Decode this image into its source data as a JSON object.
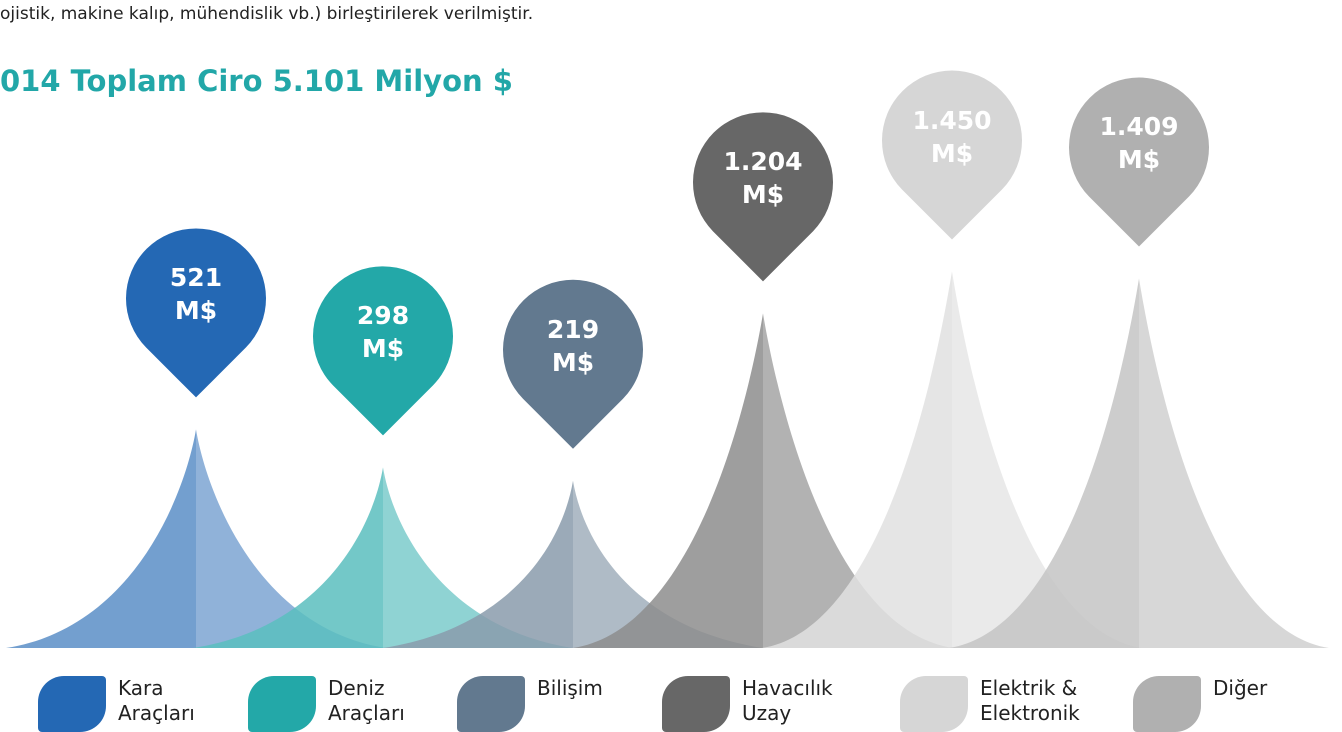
{
  "chart_data": {
    "type": "peak",
    "note": "ojistik, makine kalıp, mühendislik vb.) birleştirilerek verilmiştir.",
    "title": "014 Toplam Ciro  5.101 Milyon $",
    "categories": [
      "Kara Araçları",
      "Deniz Araçları",
      "Bilişim",
      "Havacılık Uzay",
      "Elektrik & Elektronik",
      "Diğer"
    ],
    "values": [
      521,
      298,
      219,
      1204,
      1450,
      1409
    ],
    "value_labels": [
      "521 M$",
      "298 M$",
      "219 M$",
      "1.204 M$",
      "1.450 M$",
      "1.409 M$"
    ],
    "colors": [
      "#2468b4",
      "#23a8a8",
      "#62798f",
      "#676767",
      "#d6d6d6",
      "#b0b0b0"
    ]
  }
}
